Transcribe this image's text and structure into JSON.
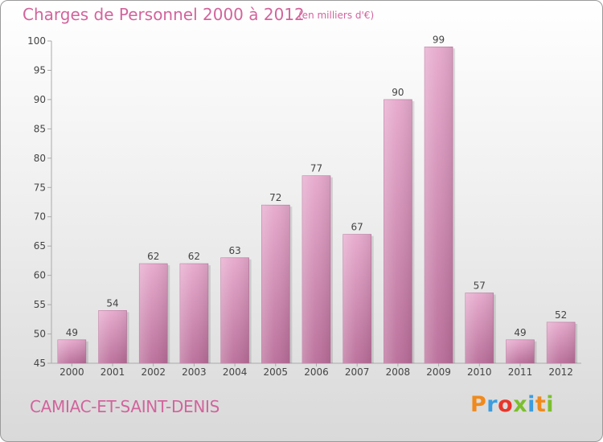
{
  "chart_data": {
    "type": "bar",
    "title": "Charges de Personnel 2000 à 2012",
    "subtitle": "(en milliers d'€)",
    "categories": [
      "2000",
      "2001",
      "2002",
      "2003",
      "2004",
      "2005",
      "2006",
      "2007",
      "2008",
      "2009",
      "2010",
      "2011",
      "2012"
    ],
    "values": [
      49,
      54,
      62,
      62,
      63,
      72,
      77,
      67,
      90,
      99,
      57,
      49,
      52
    ],
    "data_labels": [
      "49",
      "54",
      "62",
      "62",
      "63",
      "72",
      "77",
      "67",
      "90",
      "99",
      "57",
      "49",
      "52"
    ],
    "ylim": [
      45,
      100
    ],
    "yticks": [
      45,
      50,
      55,
      60,
      65,
      70,
      75,
      80,
      85,
      90,
      95,
      100
    ],
    "grid": false,
    "bar_color": "#d98fbb"
  },
  "location": "CAMIAC-ET-SAINT-DENIS",
  "brand": {
    "text": "Proxiti",
    "colors": [
      "#f08a1c",
      "#3b9de0",
      "#e8352a",
      "#7bbf2e",
      "#3b9de0",
      "#f08a1c",
      "#7bbf2e"
    ]
  }
}
